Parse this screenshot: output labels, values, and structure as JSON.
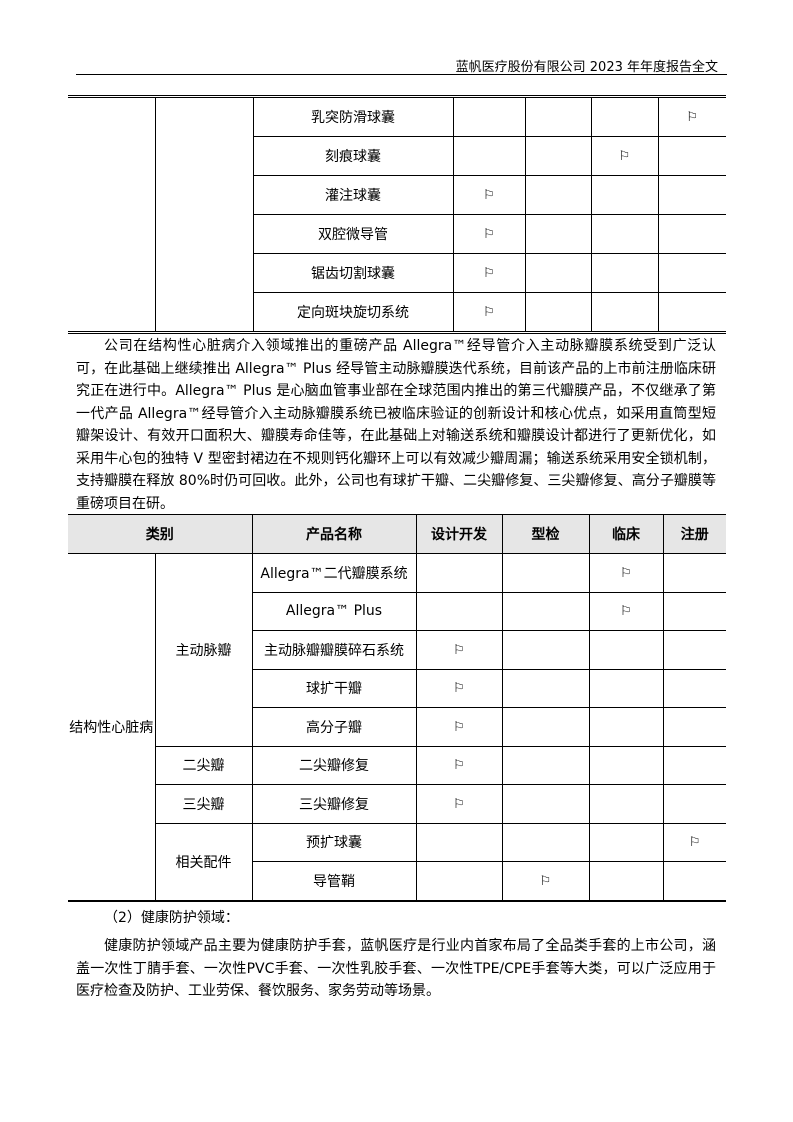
{
  "header": {
    "title": "蓝帆医疗股份有限公司 2023 年年度报告全文"
  },
  "table1": {
    "rows": [
      {
        "product": "乳突防滑球囊",
        "marks": [
          false,
          false,
          false,
          true
        ]
      },
      {
        "product": "刻痕球囊",
        "marks": [
          false,
          false,
          true,
          false
        ]
      },
      {
        "product": "灌注球囊",
        "marks": [
          true,
          false,
          false,
          false
        ]
      },
      {
        "product": "双腔微导管",
        "marks": [
          true,
          false,
          false,
          false
        ]
      },
      {
        "product": "锯齿切割球囊",
        "marks": [
          true,
          false,
          false,
          false
        ]
      },
      {
        "product": "定向斑块旋切系统",
        "marks": [
          true,
          false,
          false,
          false
        ]
      }
    ]
  },
  "paragraph1": "公司在结构性心脏病介入领域推出的重磅产品 Allegra™经导管介入主动脉瓣膜系统受到广泛认可，在此基础上继续推出 Allegra™ Plus 经导管主动脉瓣膜迭代系统，目前该产品的上市前注册临床研究正在进行中。Allegra™ Plus 是心脑血管事业部在全球范围内推出的第三代瓣膜产品，不仅继承了第一代产品 Allegra™经导管介入主动脉瓣膜系统已被临床验证的创新设计和核心优点，如采用直筒型短瓣架设计、有效开口面积大、瓣膜寿命佳等，在此基础上对输送系统和瓣膜设计都进行了更新优化，如采用牛心包的独特 V 型密封裙边在不规则钙化瓣环上可以有效减少瓣周漏；输送系统采用安全锁机制，支持瓣膜在释放 80%时仍可回收。此外，公司也有球扩干瓣、二尖瓣修复、三尖瓣修复、高分子瓣膜等重磅项目在研。",
  "table2": {
    "headers": [
      "类别",
      "产品名称",
      "设计开发",
      "型检",
      "临床",
      "注册"
    ],
    "category": "结构性心脏病",
    "groups": [
      {
        "name": "主动脉瓣",
        "rows": [
          {
            "product": "Allegra™二代瓣膜系统",
            "marks": [
              false,
              false,
              true,
              false
            ]
          },
          {
            "product": "Allegra™ Plus",
            "marks": [
              false,
              false,
              true,
              false
            ]
          },
          {
            "product": "主动脉瓣瓣膜碎石系统",
            "marks": [
              true,
              false,
              false,
              false
            ]
          },
          {
            "product": "球扩干瓣",
            "marks": [
              true,
              false,
              false,
              false
            ]
          },
          {
            "product": "高分子瓣",
            "marks": [
              true,
              false,
              false,
              false
            ]
          }
        ]
      },
      {
        "name": "二尖瓣",
        "rows": [
          {
            "product": "二尖瓣修复",
            "marks": [
              true,
              false,
              false,
              false
            ]
          }
        ]
      },
      {
        "name": "三尖瓣",
        "rows": [
          {
            "product": "三尖瓣修复",
            "marks": [
              true,
              false,
              false,
              false
            ]
          }
        ]
      },
      {
        "name": "相关配件",
        "rows": [
          {
            "product": "预扩球囊",
            "marks": [
              false,
              false,
              false,
              true
            ]
          },
          {
            "product": "导管鞘",
            "marks": [
              false,
              true,
              false,
              false
            ]
          }
        ]
      }
    ]
  },
  "flag_icon": "⚐",
  "subheading": "（2）健康防护领域：",
  "paragraph2": "健康防护领域产品主要为健康防护手套，蓝帆医疗是行业内首家布局了全品类手套的上市公司，涵盖一次性丁腈手套、一次性PVC手套、一次性乳胶手套、一次性TPE/CPE手套等大类，可以广泛应用于医疗检查及防护、工业劳保、餐饮服务、家务劳动等场景。"
}
